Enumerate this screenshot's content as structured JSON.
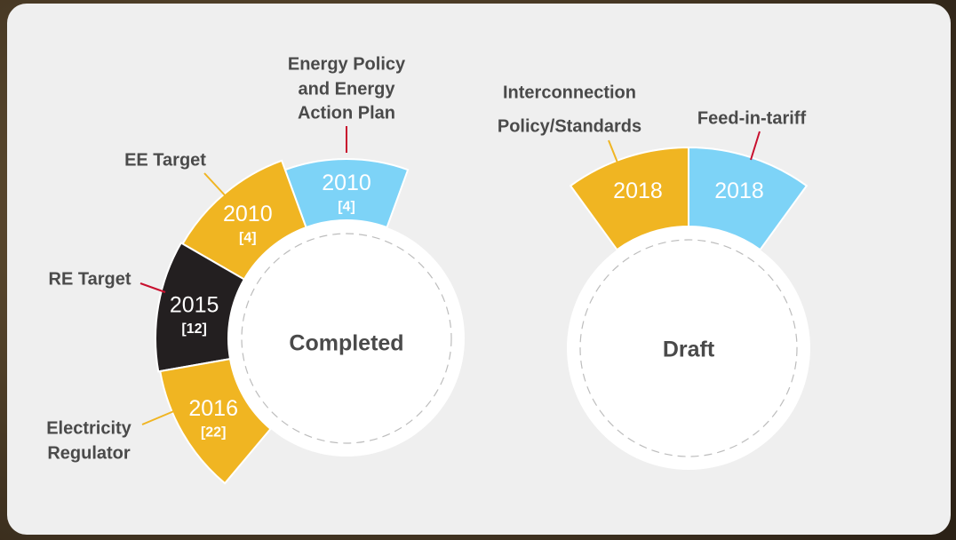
{
  "groups": [
    {
      "status": "Completed",
      "segments": [
        {
          "label": [
            "Energy Policy",
            "and Energy",
            "Action Plan"
          ],
          "year": "2010",
          "count": "[4]",
          "color": "#7dd3f7"
        },
        {
          "label": [
            "EE Target"
          ],
          "year": "2010",
          "count": "[4]",
          "color": "#f0b522"
        },
        {
          "label": [
            "RE Target"
          ],
          "year": "2015",
          "count": "[12]",
          "color": "#231f20"
        },
        {
          "label": [
            "Electricity",
            "Regulator"
          ],
          "year": "2016",
          "count": "[22]",
          "color": "#f0b522"
        }
      ]
    },
    {
      "status": "Draft",
      "segments": [
        {
          "label": [
            "Interconnection",
            "Policy/Standards"
          ],
          "year": "2018",
          "color": "#f0b522"
        },
        {
          "label": [
            "Feed-in-tariff"
          ],
          "year": "2018",
          "color": "#7dd3f7"
        }
      ]
    }
  ]
}
